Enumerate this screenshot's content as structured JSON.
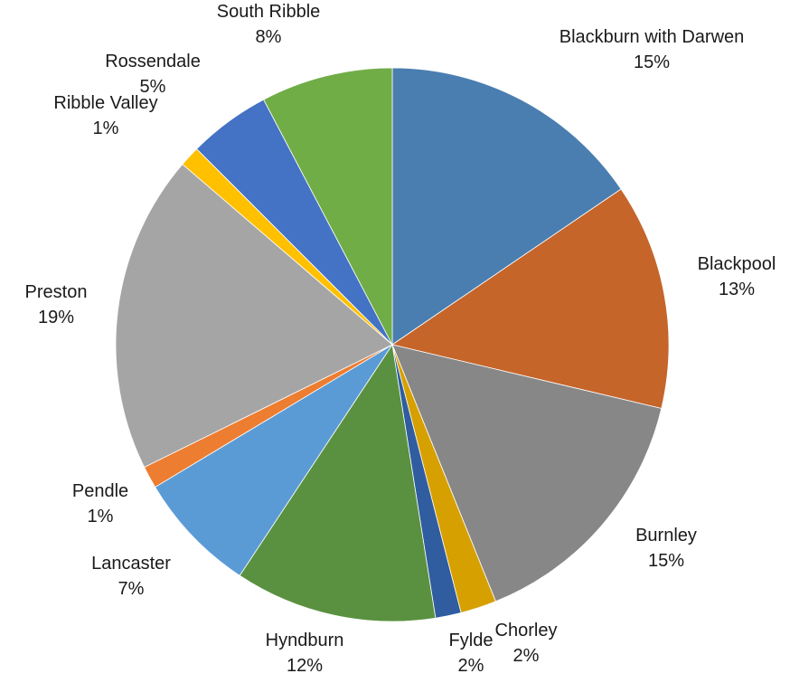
{
  "chart_data": {
    "type": "pie",
    "title": "",
    "slices": [
      {
        "label": "Blackburn with Darwen",
        "value": 15.5,
        "percent_label": "15%",
        "color": "#4a7eb0"
      },
      {
        "label": "Blackpool",
        "value": 13.2,
        "percent_label": "13%",
        "color": "#c5652a"
      },
      {
        "label": "Burnley",
        "value": 15.2,
        "percent_label": "15%",
        "color": "#878787"
      },
      {
        "label": "Chorley",
        "value": 2.1,
        "percent_label": "2%",
        "color": "#d6a000"
      },
      {
        "label": "Fylde",
        "value": 1.5,
        "percent_label": "2%",
        "color": "#2f5d9f"
      },
      {
        "label": "Hyndburn",
        "value": 11.8,
        "percent_label": "12%",
        "color": "#5a9140"
      },
      {
        "label": "Lancaster",
        "value": 7.1,
        "percent_label": "7%",
        "color": "#5b9bd5"
      },
      {
        "label": "Pendle",
        "value": 1.3,
        "percent_label": "1%",
        "color": "#ed7d31"
      },
      {
        "label": "Preston",
        "value": 18.6,
        "percent_label": "19%",
        "color": "#a5a5a5"
      },
      {
        "label": "Ribble Valley",
        "value": 1.2,
        "percent_label": "1%",
        "color": "#ffc000"
      },
      {
        "label": "Rossendale",
        "value": 4.8,
        "percent_label": "5%",
        "color": "#4472c4"
      },
      {
        "label": "South Ribble",
        "value": 7.7,
        "percent_label": "8%",
        "color": "#70ad47"
      }
    ],
    "legend": "none",
    "start_angle": "12 o'clock, clockwise"
  }
}
